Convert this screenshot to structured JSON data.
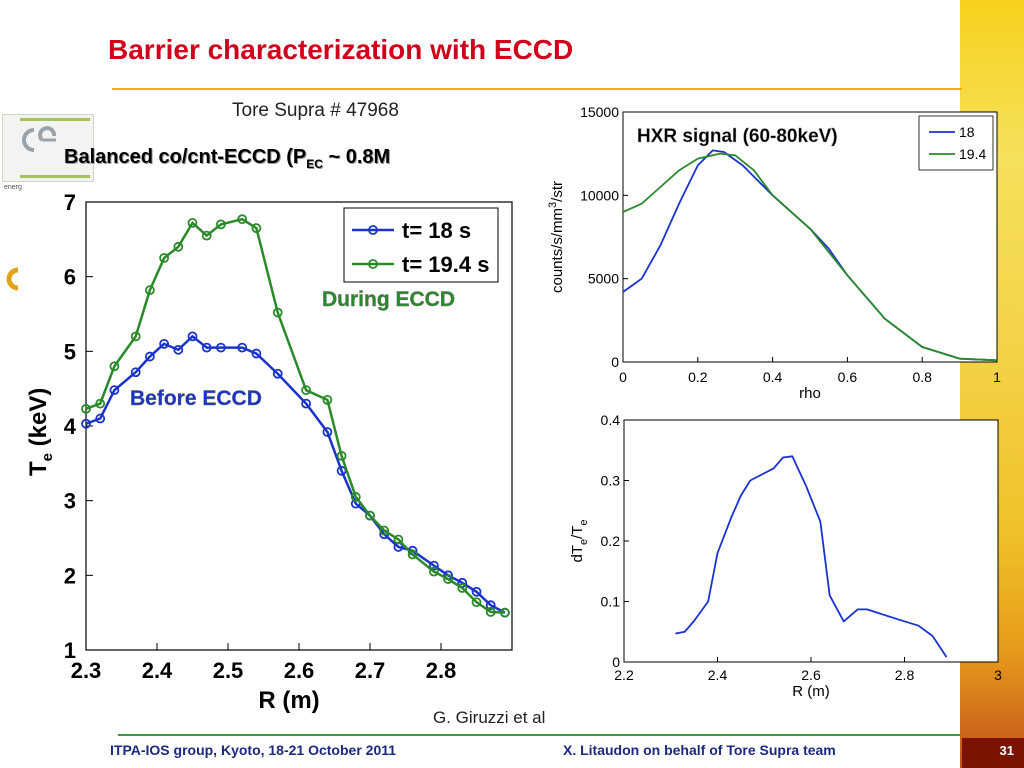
{
  "slide": {
    "title": "Barrier characterization with ECCD",
    "experiment": "Tore Supra # 47968",
    "subtitle_main": "Balanced co/cnt-ECCD (P",
    "subtitle_sub": "EC",
    "subtitle_tail": " ~ 0.8M",
    "credit": "G. Giruzzi et al",
    "footer_left": "ITPA-IOS group, Kyoto, 18-21 October 2011",
    "footer_right": "X. Litaudon on behalf of Tore Supra team",
    "page_number": "31",
    "logo_text": "energ",
    "colors": {
      "title": "#d0021b",
      "blue_series": "#1a33cc",
      "green_series": "#2a8a2a",
      "footer_text": "#1a2a80"
    }
  },
  "chart_data": [
    {
      "type": "line",
      "xlabel": "R (m)",
      "ylabel": "Te (keV)",
      "ylabel_main": "T",
      "ylabel_sub": "e",
      "ylabel_unit": "(keV)",
      "xlim": [
        2.3,
        2.9
      ],
      "ylim": [
        1,
        7
      ],
      "x_ticks": [
        "2.3",
        "2.4",
        "2.5",
        "2.6",
        "2.7",
        "2.8"
      ],
      "y_ticks": [
        "1",
        "2",
        "3",
        "4",
        "5",
        "6",
        "7"
      ],
      "legend": [
        "t= 18  s",
        "t= 19.4  s"
      ],
      "annotations": [
        "During ECCD",
        "Before ECCD"
      ],
      "series": [
        {
          "name": "t= 18  s",
          "x": [
            2.3,
            2.32,
            2.34,
            2.37,
            2.39,
            2.41,
            2.43,
            2.45,
            2.47,
            2.49,
            2.52,
            2.54,
            2.57,
            2.61,
            2.64,
            2.66,
            2.68,
            2.7,
            2.72,
            2.74,
            2.76,
            2.79,
            2.81,
            2.83,
            2.85,
            2.87,
            2.89
          ],
          "values": [
            4.03,
            4.1,
            4.48,
            4.72,
            4.93,
            5.1,
            5.02,
            5.2,
            5.05,
            5.05,
            5.05,
            4.97,
            4.7,
            4.3,
            3.92,
            3.4,
            2.96,
            2.8,
            2.55,
            2.38,
            2.33,
            2.13,
            2.0,
            1.9,
            1.78,
            1.6,
            1.5
          ]
        },
        {
          "name": "t= 19.4  s",
          "x": [
            2.3,
            2.32,
            2.34,
            2.37,
            2.39,
            2.41,
            2.43,
            2.45,
            2.47,
            2.49,
            2.52,
            2.54,
            2.57,
            2.61,
            2.64,
            2.66,
            2.68,
            2.7,
            2.72,
            2.74,
            2.76,
            2.79,
            2.81,
            2.83,
            2.85,
            2.87,
            2.89
          ],
          "values": [
            4.23,
            4.3,
            4.8,
            5.2,
            5.82,
            6.25,
            6.4,
            6.72,
            6.55,
            6.7,
            6.77,
            6.65,
            5.52,
            4.48,
            4.35,
            3.6,
            3.05,
            2.8,
            2.6,
            2.48,
            2.28,
            2.05,
            1.95,
            1.83,
            1.64,
            1.51,
            1.5
          ]
        }
      ]
    },
    {
      "type": "line",
      "title": "HXR signal (60-80keV)",
      "xlabel": "rho",
      "ylabel": "counts/s/mm3/str",
      "ylabel_main": "counts/s/mm",
      "ylabel_sup": "3",
      "ylabel_tail": "/str",
      "xlim": [
        0,
        1
      ],
      "ylim": [
        0,
        15000
      ],
      "x_ticks": [
        "0",
        "0.2",
        "0.4",
        "0.6",
        "0.8",
        "1"
      ],
      "y_ticks": [
        "0",
        "5000",
        "10000",
        "15000"
      ],
      "legend": [
        "18",
        "19.4"
      ],
      "series": [
        {
          "name": "18",
          "x": [
            0,
            0.05,
            0.1,
            0.15,
            0.2,
            0.24,
            0.27,
            0.32,
            0.4,
            0.5,
            0.55,
            0.6,
            0.7,
            0.8,
            0.9,
            1.0
          ],
          "values": [
            4200,
            5000,
            7000,
            9500,
            11800,
            12700,
            12600,
            11800,
            10000,
            8000,
            6800,
            5200,
            2600,
            900,
            200,
            100
          ]
        },
        {
          "name": "19.4",
          "x": [
            0,
            0.05,
            0.1,
            0.15,
            0.2,
            0.26,
            0.3,
            0.35,
            0.4,
            0.5,
            0.6,
            0.7,
            0.8,
            0.9,
            1.0
          ],
          "values": [
            9000,
            9500,
            10500,
            11500,
            12200,
            12500,
            12400,
            11500,
            10000,
            8000,
            5200,
            2600,
            900,
            200,
            100
          ]
        }
      ]
    },
    {
      "type": "line",
      "xlabel": "R (m)",
      "ylabel": "dTe/Te",
      "ylabel_parts": [
        "dT",
        "e",
        "/T",
        "e"
      ],
      "xlim": [
        2.2,
        3
      ],
      "ylim": [
        0,
        0.4
      ],
      "x_ticks": [
        "2.2",
        "2.4",
        "2.6",
        "2.8",
        "3"
      ],
      "y_ticks": [
        "0",
        "0.1",
        "0.2",
        "0.3",
        "0.4"
      ],
      "series": [
        {
          "x": [
            2.31,
            2.33,
            2.35,
            2.38,
            2.4,
            2.43,
            2.45,
            2.47,
            2.52,
            2.54,
            2.56,
            2.59,
            2.62,
            2.64,
            2.67,
            2.7,
            2.72,
            2.78,
            2.83,
            2.86,
            2.89
          ],
          "values": [
            0.047,
            0.05,
            0.068,
            0.1,
            0.18,
            0.24,
            0.275,
            0.3,
            0.32,
            0.338,
            0.34,
            0.29,
            0.232,
            0.11,
            0.067,
            0.087,
            0.087,
            0.072,
            0.06,
            0.043,
            0.008
          ]
        }
      ]
    }
  ]
}
